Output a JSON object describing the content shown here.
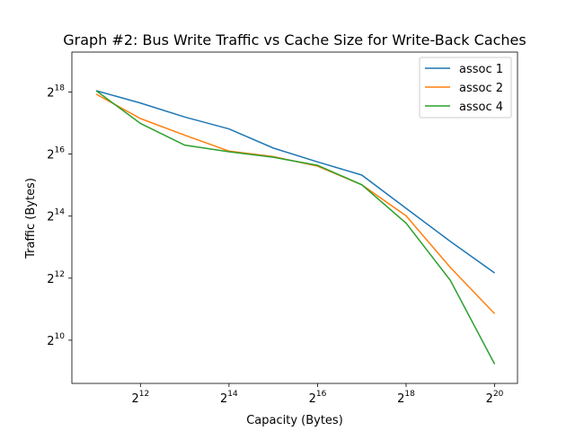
{
  "chart_data": {
    "type": "line",
    "title": "Graph #2: Bus Write Traffic vs Cache Size for Write-Back Caches",
    "xlabel": "Capacity (Bytes)",
    "ylabel": "Traffic (Bytes)",
    "xscale": "log2",
    "yscale": "log2",
    "x": [
      2048,
      4096,
      8192,
      16384,
      32768,
      65536,
      131072,
      262144,
      524288,
      1048576
    ],
    "xlim": [
      1400,
      1500000
    ],
    "ylim": [
      390,
      640000
    ],
    "x_ticks": [
      {
        "base": "2",
        "exp": "12",
        "value": 4096
      },
      {
        "base": "2",
        "exp": "14",
        "value": 16384
      },
      {
        "base": "2",
        "exp": "16",
        "value": 65536
      },
      {
        "base": "2",
        "exp": "18",
        "value": 262144
      },
      {
        "base": "2",
        "exp": "20",
        "value": 1048576
      }
    ],
    "y_ticks": [
      {
        "base": "2",
        "exp": "10",
        "value": 1024
      },
      {
        "base": "2",
        "exp": "12",
        "value": 4096
      },
      {
        "base": "2",
        "exp": "14",
        "value": 16384
      },
      {
        "base": "2",
        "exp": "16",
        "value": 65536
      },
      {
        "base": "2",
        "exp": "18",
        "value": 262144
      }
    ],
    "legend_position": "top-right",
    "grid": false,
    "series": [
      {
        "name": "assoc 1",
        "color": "#1f77b4",
        "values": [
          270000,
          205000,
          150000,
          115000,
          75000,
          55000,
          41000,
          19500,
          9300,
          4600
        ]
      },
      {
        "name": "assoc 2",
        "color": "#ff7f0e",
        "values": [
          250000,
          145000,
          100000,
          70000,
          62000,
          50000,
          33000,
          16500,
          5200,
          1850
        ]
      },
      {
        "name": "assoc 4",
        "color": "#2ca02c",
        "values": [
          270000,
          130000,
          80000,
          69000,
          61000,
          51000,
          33000,
          14000,
          3900,
          600
        ]
      }
    ]
  }
}
